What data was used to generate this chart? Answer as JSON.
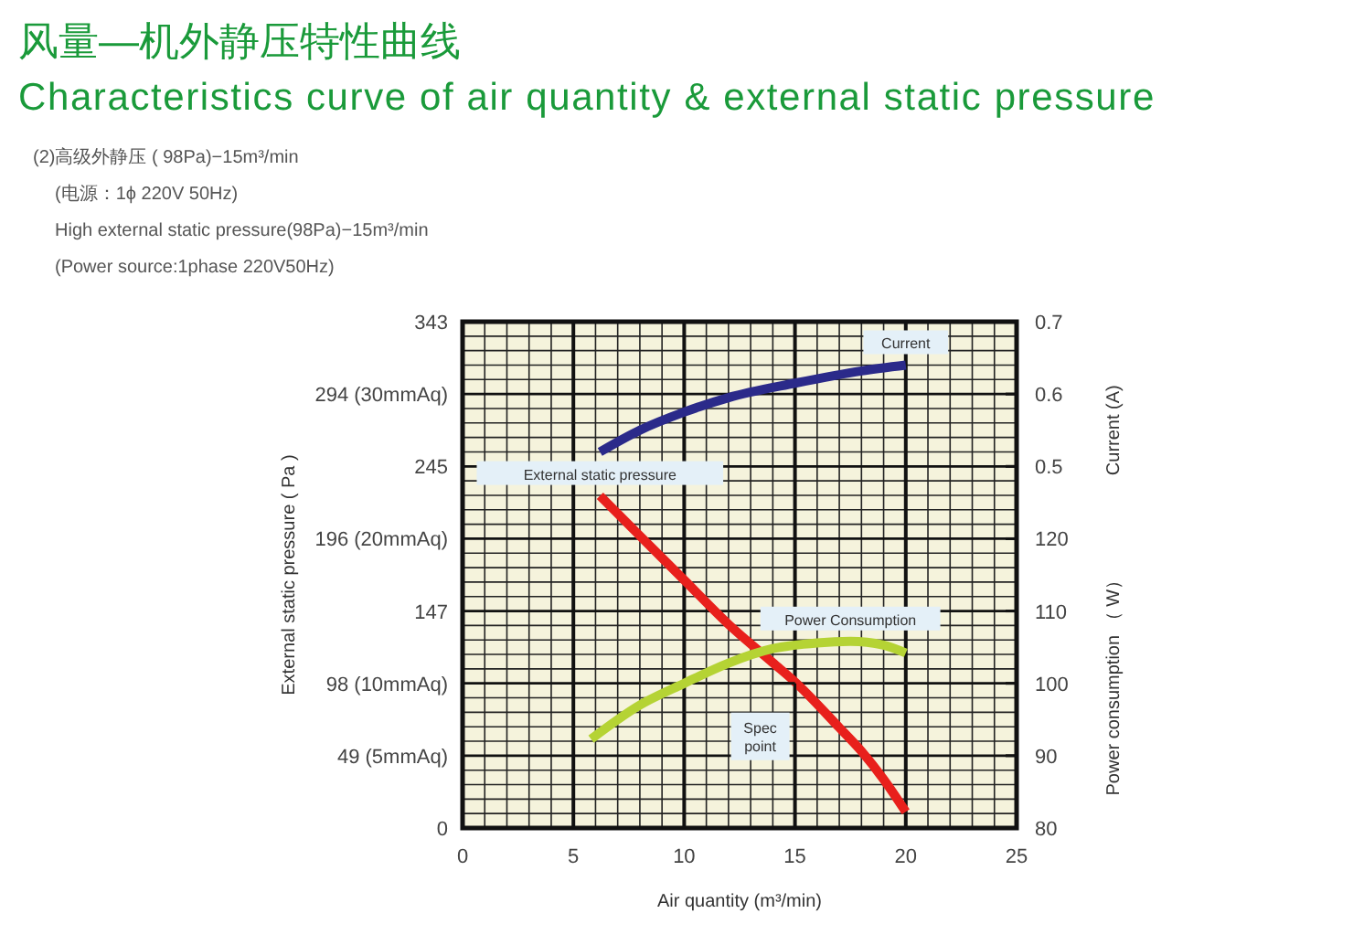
{
  "chart_data": {
    "type": "line",
    "title": "风量—机外静压特性曲线",
    "subtitle": "Characteristics curve of air quantity & external static pressure",
    "annotations": [
      "(2)高级外静压 ( 98Pa)−15m³/min",
      "(电源：1ϕ 220V 50Hz)",
      "High external static pressure(98Pa)−15m³/min",
      "(Power source:1phase 220V50Hz)",
      {
        "text": "Spec point",
        "x": 15,
        "y": 98
      }
    ],
    "xlabel": "Air quantity (m³/min)",
    "ylabel": "External static pressure ( Pa )",
    "y2label": "Current (A)",
    "y3label": "Power consumption （ W）",
    "xlim": [
      0,
      25
    ],
    "xticks": [
      0,
      5,
      10,
      15,
      20,
      25
    ],
    "ylim": [
      0,
      343
    ],
    "yticks": [
      0,
      {
        "value": 49,
        "label": "49\n(5mmAq)"
      },
      {
        "value": 98,
        "label": "98\n(10mmAq)"
      },
      147,
      {
        "value": 196,
        "label": "196\n(20mmAq)"
      },
      245,
      {
        "value": 294,
        "label": "294\n(30mmAq)"
      },
      343
    ],
    "y2lim": [
      0,
      0.7
    ],
    "y2ticks": [
      0.5,
      0.6,
      0.7
    ],
    "y3lim": [
      80,
      150
    ],
    "y3ticks": [
      80,
      90,
      100,
      110,
      120
    ],
    "grid": true,
    "line_style": "solid",
    "marker": "none",
    "series": [
      {
        "name": "Current",
        "color": "#2b2a8a",
        "axis": "y2",
        "x": [
          6.2,
          8,
          10,
          12,
          15,
          18,
          20
        ],
        "values": [
          0.52,
          0.55,
          0.575,
          0.595,
          0.615,
          0.632,
          0.64
        ]
      },
      {
        "name": "External static pressure",
        "color": "#e8201c",
        "axis": "y",
        "x": [
          6.2,
          8,
          10,
          12,
          14,
          15,
          17,
          18,
          19,
          20
        ],
        "values": [
          225,
          198,
          168,
          138,
          112,
          99,
          68,
          52,
          33,
          11
        ]
      },
      {
        "name": "Power Consumption",
        "color": "#b5d334",
        "axis": "y3",
        "x": [
          5.8,
          8,
          10,
          12,
          14,
          16,
          17.5,
          19,
          20
        ],
        "values": [
          92.3,
          97,
          100,
          102.8,
          104.8,
          105.6,
          105.8,
          105.3,
          104.2
        ]
      }
    ]
  }
}
